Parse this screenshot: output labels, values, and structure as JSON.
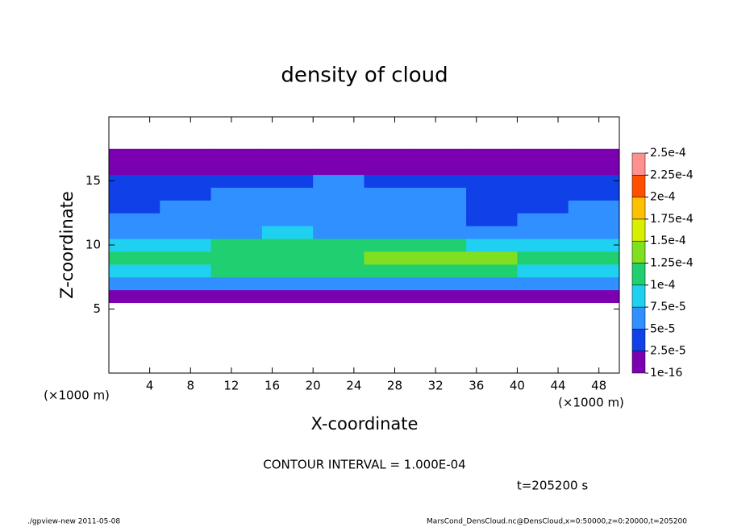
{
  "chart_data": {
    "type": "heatmap",
    "title": "density of cloud",
    "xlabel": "X-coordinate",
    "ylabel": "Z-coordinate",
    "x_unit_label": "(×1000 m)",
    "annotation": "CONTOUR INTERVAL = 1.000E-04",
    "time_label": "t=205200 s",
    "footer_left": "./gpview-new   2011-05-08",
    "footer_right": "MarsCond_DensCloud.nc@DensCloud,x=0:50000,z=0:20000,t=205200",
    "xlim": [
      0,
      50
    ],
    "ylim": [
      0,
      20
    ],
    "xticks": [
      4,
      8,
      12,
      16,
      20,
      24,
      28,
      32,
      36,
      40,
      44,
      48
    ],
    "yticks": [
      5,
      10,
      15
    ],
    "x": [
      2.5,
      7.5,
      12.5,
      17.5,
      22.5,
      27.5,
      32.5,
      37.5,
      42.5,
      47.5
    ],
    "z": [
      6,
      7,
      8,
      9,
      10,
      11,
      12,
      13,
      14,
      15,
      16,
      17
    ],
    "values": [
      [
        2e-05,
        2.2e-05,
        2e-05,
        1.8e-05,
        2e-05,
        2.2e-05,
        2e-05,
        1.8e-05,
        2e-05,
        2.2e-05
      ],
      [
        6e-05,
        5.5e-05,
        6e-05,
        6.5e-05,
        6e-05,
        5.5e-05,
        6e-05,
        6.5e-05,
        7e-05,
        6e-05
      ],
      [
        9e-05,
        9.5e-05,
        0.000102,
        0.0001,
        0.000105,
        0.000108,
        0.00011,
        0.000105,
        9.8e-05,
        9e-05
      ],
      [
        0.000105,
        0.00011,
        0.000115,
        0.00012,
        0.00012,
        0.00013,
        0.000135,
        0.00013,
        0.00011,
        0.000105
      ],
      [
        8.5e-05,
        9e-05,
        0.000105,
        0.00011,
        0.000105,
        0.00011,
        0.000105,
        9e-05,
        8e-05,
        8.5e-05
      ],
      [
        6e-05,
        6.5e-05,
        7e-05,
        7.5e-05,
        7e-05,
        6.5e-05,
        6e-05,
        5.5e-05,
        6e-05,
        6.5e-05
      ],
      [
        5e-05,
        5.5e-05,
        5.5e-05,
        6e-05,
        6.5e-05,
        5.5e-05,
        5e-05,
        4.5e-05,
        5e-05,
        5e-05
      ],
      [
        4.5e-05,
        5e-05,
        5e-05,
        5.5e-05,
        6.5e-05,
        5.5e-05,
        5e-05,
        4.5e-05,
        4.5e-05,
        5e-05
      ],
      [
        4.5e-05,
        4.5e-05,
        5e-05,
        5e-05,
        6e-05,
        5e-05,
        5e-05,
        4.5e-05,
        4.5e-05,
        4.5e-05
      ],
      [
        4e-05,
        4e-05,
        4.5e-05,
        4.5e-05,
        5.5e-05,
        4.5e-05,
        4e-05,
        4e-05,
        4e-05,
        4e-05
      ],
      [
        1.5e-05,
        1.5e-05,
        1.5e-05,
        1.5e-05,
        1.5e-05,
        1.5e-05,
        1.5e-05,
        1.5e-05,
        1.5e-05,
        1.5e-05
      ],
      [
        5e-06,
        5e-06,
        5e-06,
        5e-06,
        5e-06,
        5e-06,
        5e-06,
        5e-06,
        5e-06,
        5e-06
      ]
    ],
    "colorbar": {
      "ticks": [
        1e-16,
        {
          "value": 2.5e-05,
          "label": "2.5e-5"
        },
        {
          "value": 5e-05,
          "label": "5e-5"
        },
        {
          "value": 7.5e-05,
          "label": "7.5e-5"
        },
        {
          "value": 0.0001,
          "label": "1e-4"
        },
        {
          "value": 0.000125,
          "label": "1.25e-4"
        },
        {
          "value": 0.00015,
          "label": "1.5e-4"
        },
        {
          "value": 0.000175,
          "label": "1.75e-4"
        },
        {
          "value": 0.0002,
          "label": "2e-4"
        },
        {
          "value": 0.000225,
          "label": "2.25e-4"
        },
        {
          "value": 0.00025,
          "label": "2.5e-4"
        }
      ],
      "colors": [
        "#7a00b0",
        "#1040e8",
        "#3090ff",
        "#20d0f0",
        "#20d070",
        "#80e020",
        "#d8f000",
        "#ffc000",
        "#ff5000",
        "#ff9090"
      ]
    }
  }
}
